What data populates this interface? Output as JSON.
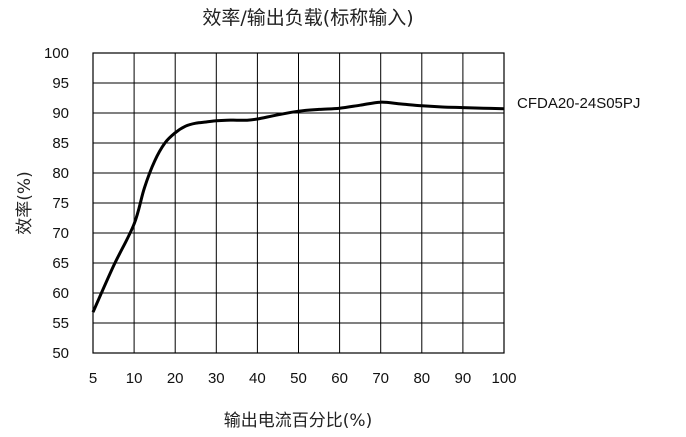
{
  "chart_data": {
    "type": "line",
    "title": "效率/输出负载(标称输入)",
    "xlabel": "输出电流百分比(%)",
    "ylabel": "效率(%)",
    "x_ticks": [
      "5",
      "10",
      "20",
      "30",
      "40",
      "50",
      "60",
      "70",
      "80",
      "90",
      "100"
    ],
    "y_ticks": [
      "50",
      "55",
      "60",
      "65",
      "70",
      "75",
      "80",
      "85",
      "90",
      "95",
      "100"
    ],
    "ylim": [
      50,
      100
    ],
    "grid": true,
    "series": [
      {
        "name": "CFDA20-24S05PJ",
        "color": "#000000",
        "x": [
          5,
          7.5,
          10,
          12.5,
          15,
          17.5,
          20,
          22.5,
          25,
          27.5,
          30,
          32.5,
          35,
          37.5,
          40,
          45,
          50,
          55,
          60,
          65,
          70,
          75,
          80,
          85,
          90,
          95,
          100
        ],
        "y": [
          56.8,
          64.5,
          71.5,
          77.5,
          82.0,
          85.0,
          86.7,
          87.8,
          88.3,
          88.5,
          88.7,
          88.8,
          88.8,
          88.8,
          89.0,
          89.7,
          90.3,
          90.6,
          90.8,
          91.3,
          91.8,
          91.5,
          91.2,
          91.0,
          90.9,
          90.8,
          90.7
        ]
      }
    ]
  }
}
